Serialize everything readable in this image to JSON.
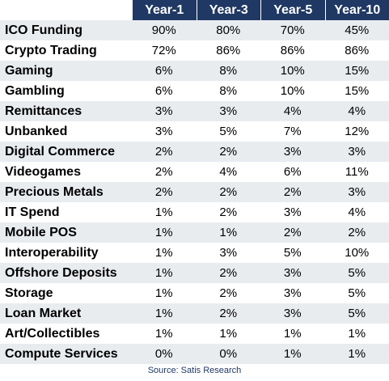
{
  "table": {
    "headers": [
      "Year-1",
      "Year-3",
      "Year-5",
      "Year-10"
    ],
    "rows": [
      {
        "label": "ICO Funding",
        "values": [
          "90%",
          "80%",
          "70%",
          "45%"
        ]
      },
      {
        "label": "Crypto Trading",
        "values": [
          "72%",
          "86%",
          "86%",
          "86%"
        ]
      },
      {
        "label": "Gaming",
        "values": [
          "6%",
          "8%",
          "10%",
          "15%"
        ]
      },
      {
        "label": "Gambling",
        "values": [
          "6%",
          "8%",
          "10%",
          "15%"
        ]
      },
      {
        "label": "Remittances",
        "values": [
          "3%",
          "3%",
          "4%",
          "4%"
        ]
      },
      {
        "label": "Unbanked",
        "values": [
          "3%",
          "5%",
          "7%",
          "12%"
        ]
      },
      {
        "label": "Digital Commerce",
        "values": [
          "2%",
          "2%",
          "3%",
          "3%"
        ]
      },
      {
        "label": "Videogames",
        "values": [
          "2%",
          "4%",
          "6%",
          "11%"
        ]
      },
      {
        "label": "Precious Metals",
        "values": [
          "2%",
          "2%",
          "2%",
          "3%"
        ]
      },
      {
        "label": "IT Spend",
        "values": [
          "1%",
          "2%",
          "3%",
          "4%"
        ]
      },
      {
        "label": "Mobile POS",
        "values": [
          "1%",
          "1%",
          "2%",
          "2%"
        ]
      },
      {
        "label": "Interoperability",
        "values": [
          "1%",
          "3%",
          "5%",
          "10%"
        ]
      },
      {
        "label": "Offshore Deposits",
        "values": [
          "1%",
          "2%",
          "3%",
          "5%"
        ]
      },
      {
        "label": "Storage",
        "values": [
          "1%",
          "2%",
          "3%",
          "5%"
        ]
      },
      {
        "label": "Loan Market",
        "values": [
          "1%",
          "2%",
          "3%",
          "5%"
        ]
      },
      {
        "label": "Art/Collectibles",
        "values": [
          "1%",
          "1%",
          "1%",
          "1%"
        ]
      },
      {
        "label": "Compute Services",
        "values": [
          "0%",
          "0%",
          "1%",
          "1%"
        ]
      }
    ]
  },
  "source": "Source: Satis Research",
  "colors": {
    "header_bg": "#1f3864",
    "header_text": "#ffffff",
    "row_shade": "#e9ecef",
    "source_text": "#1f3864"
  }
}
